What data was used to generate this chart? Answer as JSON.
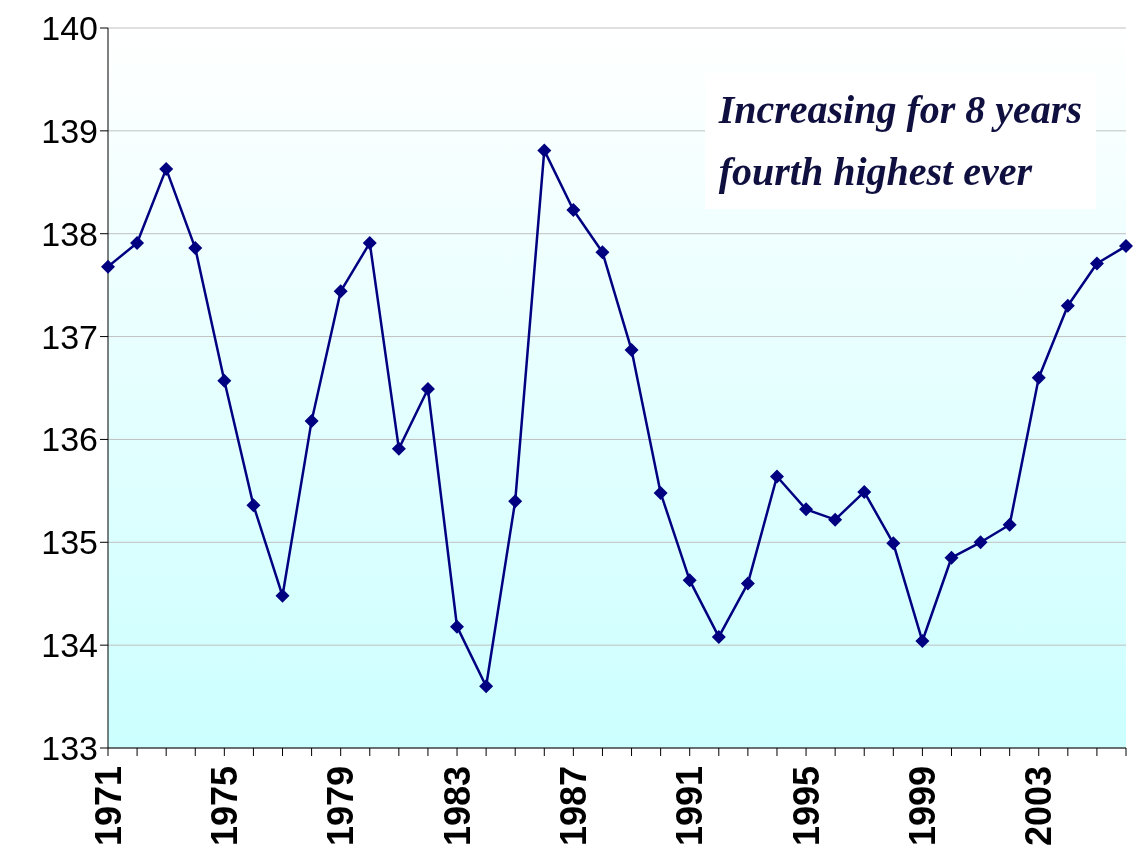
{
  "chart_data": {
    "type": "line",
    "categories": [
      "1971",
      null,
      null,
      null,
      "1975",
      null,
      null,
      null,
      "1979",
      null,
      null,
      null,
      "1983",
      null,
      null,
      null,
      "1987",
      null,
      null,
      null,
      "1991",
      null,
      null,
      null,
      "1995",
      null,
      null,
      null,
      "1999",
      null,
      null,
      null,
      "2003",
      null,
      null,
      null
    ],
    "series": [
      {
        "color": "#000080",
        "values": [
          137.68,
          137.91,
          138.63,
          137.86,
          136.57,
          135.36,
          134.48,
          136.18,
          137.44,
          137.91,
          135.91,
          136.49,
          134.18,
          133.6,
          135.4,
          138.81,
          138.23,
          137.82,
          136.87,
          135.48,
          134.63,
          134.08,
          134.6,
          135.64,
          135.32,
          135.22,
          135.49,
          134.99,
          134.04,
          134.85,
          135.0,
          135.17,
          136.6,
          137.3,
          137.71,
          137.88
        ]
      }
    ],
    "ylim": [
      133,
      140
    ],
    "yticks": [
      133,
      134,
      135,
      136,
      137,
      138,
      139,
      140
    ],
    "grid": "y",
    "marker": "diamond",
    "line_style": "solid",
    "annotations": [
      "Increasing for 8 years\nfourth highest ever"
    ]
  }
}
